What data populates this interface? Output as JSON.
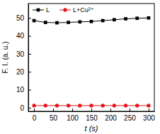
{
  "chart_data": {
    "type": "line",
    "x_label": "t (s)",
    "y_label": "F. I. (a. u.)",
    "x": [
      0,
      30,
      60,
      90,
      120,
      150,
      180,
      210,
      240,
      270,
      300
    ],
    "series": [
      {
        "name": "L",
        "color": "#000000",
        "marker": "square",
        "values": [
          48.5,
          47.5,
          47.3,
          47.5,
          47.8,
          48.0,
          48.5,
          49.0,
          49.5,
          49.8,
          50.0
        ]
      },
      {
        "name": "L+Cu²⁺",
        "color": "#e8131b",
        "marker": "circle",
        "values": [
          1.2,
          1.2,
          1.2,
          1.2,
          1.2,
          1.2,
          1.2,
          1.2,
          1.2,
          1.2,
          1.2
        ]
      }
    ],
    "xlim": [
      -15,
      315
    ],
    "xticks": [
      0,
      50,
      100,
      150,
      200,
      250,
      300
    ],
    "ylim": [
      -2,
      58
    ],
    "yticks": [
      0,
      10,
      20,
      30,
      40,
      50
    ],
    "legend": "upper left",
    "grid": false
  }
}
